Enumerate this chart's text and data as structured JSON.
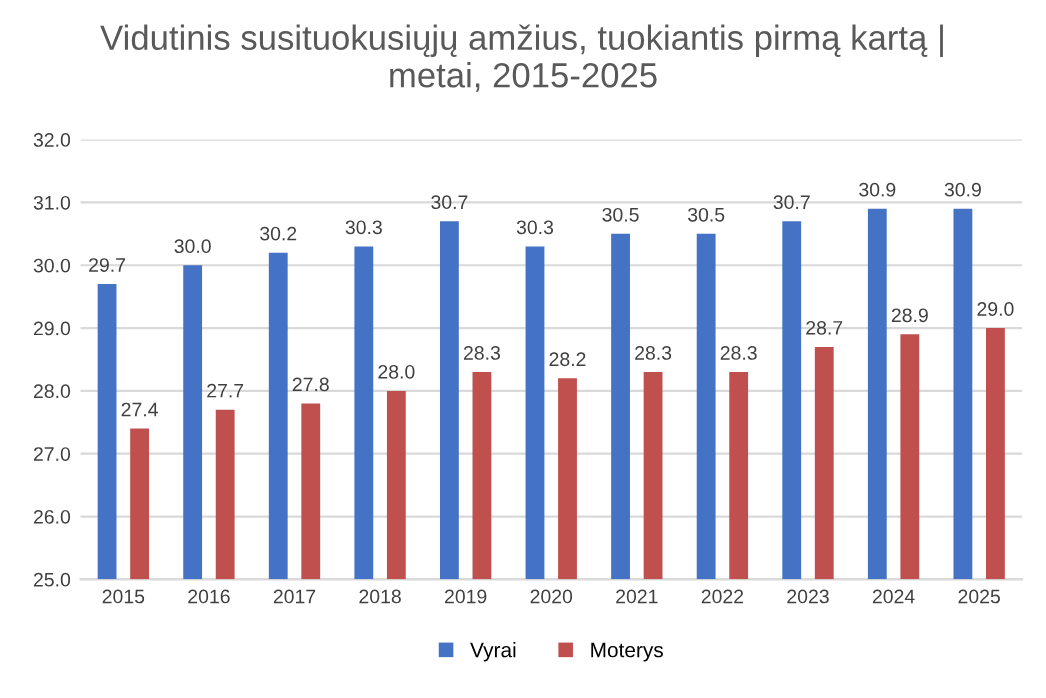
{
  "chart_data": {
    "type": "bar",
    "title": "Vidutinis susituokusiųjų amžius, tuokiantis pirmą kartą |\nmetai, 2015-2025",
    "categories": [
      "2015",
      "2016",
      "2017",
      "2018",
      "2019",
      "2020",
      "2021",
      "2022",
      "2023",
      "2024",
      "2025"
    ],
    "series": [
      {
        "name": "Vyrai",
        "color": "#4472c4",
        "values": [
          29.7,
          30.0,
          30.2,
          30.3,
          30.7,
          30.3,
          30.5,
          30.5,
          30.7,
          30.9,
          30.9
        ],
        "value_labels": [
          "29.7",
          "30.0",
          "30.2",
          "30.3",
          "30.7",
          "30.3",
          "30.5",
          "30.5",
          "30.7",
          "30.9",
          "30.9"
        ]
      },
      {
        "name": "Moterys",
        "color": "#c0504d",
        "values": [
          27.4,
          27.7,
          27.8,
          28.0,
          28.3,
          28.2,
          28.3,
          28.3,
          28.7,
          28.9,
          29.0
        ],
        "value_labels": [
          "27.4",
          "27.7",
          "27.8",
          "28.0",
          "28.3",
          "28.2",
          "28.3",
          "28.3",
          "28.7",
          "28.9",
          "29.0"
        ]
      }
    ],
    "ylim": [
      25.0,
      32.0
    ],
    "yticks": [
      {
        "value": 25,
        "label": "25.0"
      },
      {
        "value": 26,
        "label": "26.0"
      },
      {
        "value": 27,
        "label": "27.0"
      },
      {
        "value": 28,
        "label": "28.0"
      },
      {
        "value": 29,
        "label": "29.0"
      },
      {
        "value": 30,
        "label": "30.0"
      },
      {
        "value": 31,
        "label": "31.0"
      },
      {
        "value": 32,
        "label": "32.0"
      }
    ],
    "grid": "y",
    "legend": "bottom"
  }
}
